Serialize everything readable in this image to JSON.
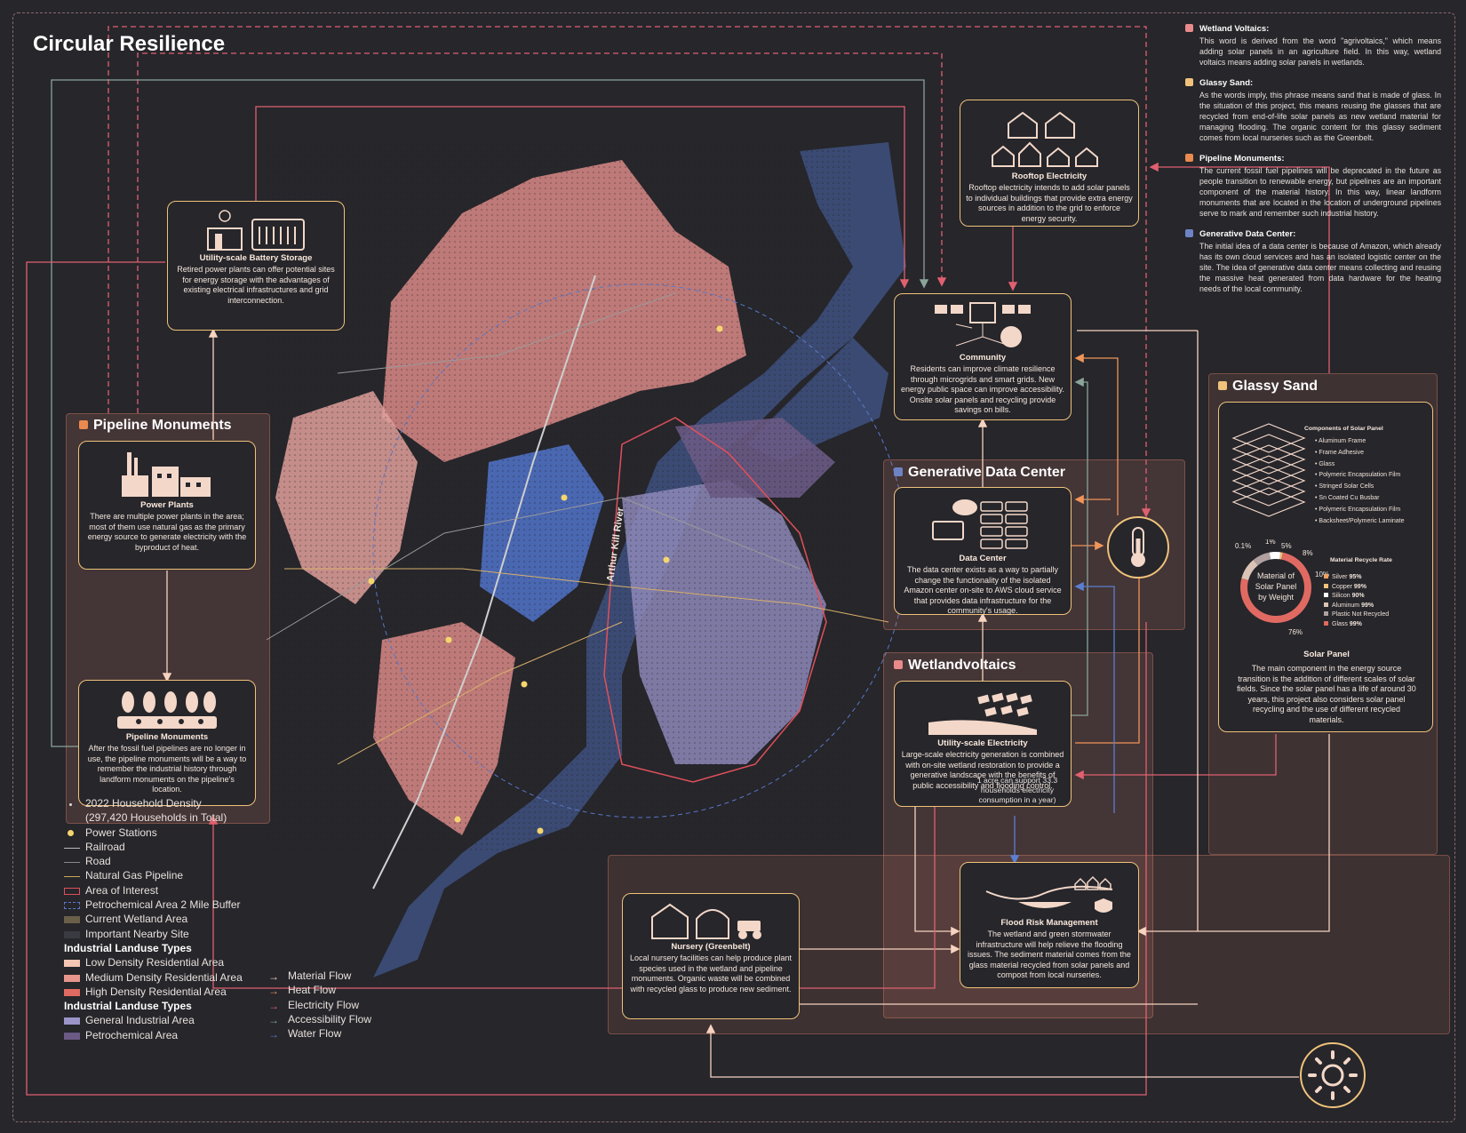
{
  "title": "Circular Resilience",
  "zones": {
    "pipeline": {
      "label": "Pipeline Monuments",
      "color": "#e98a4e"
    },
    "glassy": {
      "label": "Glassy Sand",
      "color": "#f0c27a"
    },
    "datacenter": {
      "label": "Generative Data Center",
      "color": "#6d83c4"
    },
    "wetland": {
      "label": "Wetlandvoltaics",
      "color": "#e98a8a"
    }
  },
  "cards": {
    "battery": {
      "title": "Utility-scale Battery Storage",
      "desc": "Retired power plants can offer potential sites for energy storage with the advantages of existing electrical infrastructures and grid interconnection."
    },
    "power_plants": {
      "title": "Power Plants",
      "desc": "There are multiple power plants in the area; most of them use natural gas as the primary energy source to generate electricity with the byproduct of heat."
    },
    "pipeline_monuments": {
      "title": "Pipeline Monuments",
      "desc": "After the fossil fuel pipelines are no longer in use, the pipeline monuments will be a way to remember the industrial history through landform monuments on the pipeline's location."
    },
    "rooftop": {
      "title": "Rooftop Electricity",
      "desc": "Rooftop electricity intends to add solar panels to individual buildings that provide extra energy sources in addition to the grid to enforce energy security."
    },
    "community": {
      "title": "Community",
      "desc": "Residents can improve climate resilience through microgrids and smart grids. New energy public space can improve accessibility. Onsite solar panels and recycling provide savings on bills."
    },
    "data_center": {
      "title": "Data Center",
      "desc": "The data center exists as a way to partially change the functionality of the isolated Amazon center on-site to AWS cloud service that provides data infrastructure for the community's usage."
    },
    "utility_electricity": {
      "title": "Utility-scale Electricity",
      "desc": "Large-scale electricity generation is combined with on-site wetland restoration to provide a generative landscape with the benefits of public accessibility and flooding control."
    },
    "flood": {
      "title": "Flood Risk Management",
      "desc": "The wetland and green stormwater infrastructure will help relieve the flooding issues. The sediment material comes from the glass material recycled from solar panels and compost from local nurseries."
    },
    "nursery": {
      "title": "Nursery (Greenbelt)",
      "desc": "Local nursery facilities can help produce plant species used in the wetland and pipeline monuments. Organic waste will be combined with recycled glass to produce new sediment."
    },
    "solar_panel": {
      "title": "Solar Panel",
      "desc": "The main component in the energy source transition is the addition of different scales of solar fields. Since the solar panel has a life of around 30 years, this project also considers solar panel recycling and the use of different recycled materials."
    }
  },
  "solar_components": {
    "title": "Components of Solar Panel",
    "items": [
      "Aluminum Frame",
      "Frame Adhesive",
      "Glass",
      "Polymeric Encapsulation Film",
      "Stringed Solar Cells",
      "Sn Coated Cu Busbar",
      "Polymeric Encapsulation Film",
      "Backsheet/Polymeric Laminate"
    ]
  },
  "recycle_chart": {
    "title": "Material Recycle Rate",
    "center_label": "Material of Solar Panel by Weight",
    "pct_labels": [
      "0.1%",
      "1%",
      "5%",
      "8%",
      "10%",
      "76%"
    ],
    "items": [
      {
        "name": "Silver",
        "rate": "95%",
        "color": "#f0a060"
      },
      {
        "name": "Copper",
        "rate": "99%",
        "color": "#f0c27a"
      },
      {
        "name": "Silicon",
        "rate": "90%",
        "color": "#ffffff"
      },
      {
        "name": "Aluminum",
        "rate": "99%",
        "color": "#d9c4b6"
      },
      {
        "name": "Plastic Not Recycled",
        "rate": "",
        "color": "#b0a0a0"
      },
      {
        "name": "Glass",
        "rate": "99%",
        "color": "#e06a62"
      }
    ]
  },
  "chart_data": {
    "type": "pie",
    "title": "Material of Solar Panel by Weight",
    "categories": [
      "Glass",
      "Aluminum",
      "Plastic",
      "Silicon",
      "Copper",
      "Silver"
    ],
    "values": [
      76,
      10,
      8,
      5,
      1,
      0.1
    ],
    "colors": [
      "#e06a62",
      "#d9c4b6",
      "#b0a0a0",
      "#ffffff",
      "#f0c27a",
      "#f0a060"
    ]
  },
  "definitions": [
    {
      "term": "Wetland Voltaics:",
      "color": "#e98a8a",
      "text": "This word is derived from the word \"agrivoltaics,\" which means adding solar panels in an agriculture field. In this way, wetland voltaics means adding solar panels in wetlands."
    },
    {
      "term": "Glassy Sand:",
      "color": "#f0c27a",
      "text": "As the words imply, this phrase means sand that is made of glass. In the situation of this project, this means reusing the glasses that are recycled from end-of-life solar panels as new wetland material for managing flooding. The organic content for this glassy sediment comes from local nurseries such as the Greenbelt."
    },
    {
      "term": "Pipeline Monuments:",
      "color": "#e98a4e",
      "text": "The current fossil fuel pipelines will be deprecated in the future as people transition to renewable energy, but pipelines are an important component of the material history. In this way, linear landform monuments that are located in the location of underground pipelines serve to mark and remember such industrial history."
    },
    {
      "term": "Generative Data Center:",
      "color": "#6d83c4",
      "text": "The initial idea of a data center is because of Amazon, which already has its own cloud services and has an isolated logistic center on the site. The idea of generative data center means collecting and reusing the massive heat generated from data hardware for the heating needs of the local community."
    }
  ],
  "map": {
    "river_label": "Arthur Kill River"
  },
  "note": "1 acre can support 33.3 households electricity consumption in a year)",
  "legend": [
    {
      "label": "2022 Household Density",
      "kind": "dot",
      "color": "#dddddd"
    },
    {
      "label": "(297,420 Households in Total)",
      "kind": "none"
    },
    {
      "label": "Power Stations",
      "kind": "bigdot",
      "color": "#f5d66e"
    },
    {
      "label": "Railroad",
      "kind": "line",
      "color": "#bbbbbb"
    },
    {
      "label": "Road",
      "kind": "line",
      "color": "#888888"
    },
    {
      "label": "Natural Gas Pipeline",
      "kind": "line",
      "color": "#c9a85a"
    },
    {
      "label": "Area of Interest",
      "kind": "box",
      "color": "#e0505a"
    },
    {
      "label": "Petrochemical Area 2 Mile Buffer",
      "kind": "dashbox",
      "color": "#5a78c8"
    },
    {
      "label": "Current Wetland Area",
      "kind": "fill",
      "color": "#6a5f48"
    },
    {
      "label": "Important Nearby Site",
      "kind": "fill",
      "color": "#3a3a42"
    },
    {
      "label": "Industrial Landuse Types",
      "kind": "head"
    },
    {
      "label": "Low Density Residential Area",
      "kind": "fill",
      "color": "#f4c4b4"
    },
    {
      "label": "Medium Density Residential Area",
      "kind": "fill",
      "color": "#e8968c"
    },
    {
      "label": "High Density Residential Area",
      "kind": "fill",
      "color": "#e06a62"
    },
    {
      "label": "Industrial Landuse Types",
      "kind": "head"
    },
    {
      "label": "General Industrial Area",
      "kind": "fill",
      "color": "#9a94c8"
    },
    {
      "label": "Petrochemical Area",
      "kind": "fill",
      "color": "#6a5a84"
    }
  ],
  "flow_legend": [
    {
      "label": "Material Flow",
      "color": "#f6d3c0"
    },
    {
      "label": "Heat Flow",
      "color": "#f0955a"
    },
    {
      "label": "Electricity Flow",
      "color": "#e06070"
    },
    {
      "label": "Accessibility Flow",
      "color": "#8aa49a"
    },
    {
      "label": "Water Flow",
      "color": "#5a7fd0"
    }
  ]
}
